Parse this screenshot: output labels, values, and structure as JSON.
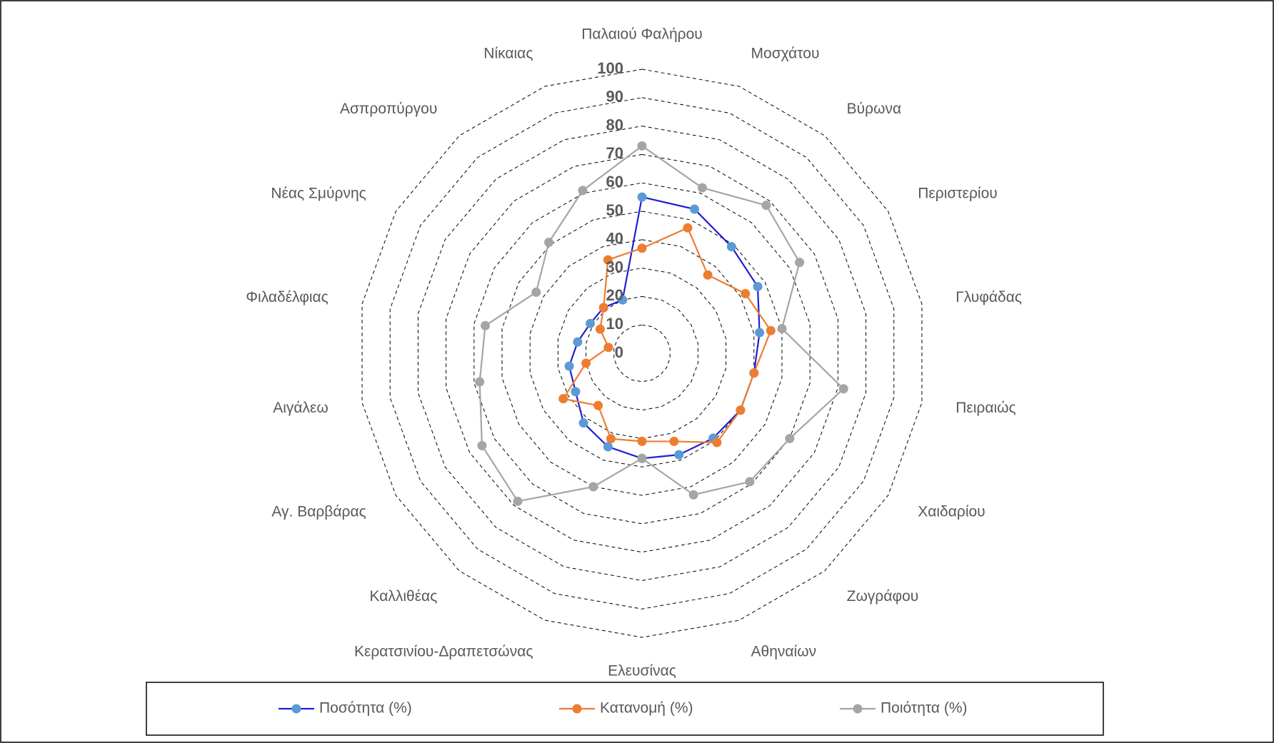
{
  "chart_data": {
    "type": "radar",
    "categories": [
      "Παλαιού Φαλήρου",
      "Μοσχάτου",
      "Βύρωνα",
      "Περιστερίου",
      "Γλυφάδας",
      "Πειραιώς",
      "Χαιδαρίου",
      "Ζωγράφου",
      "Αθηναίων",
      "Ελευσίνας",
      "Κερατσινίου-Δραπετσώνας",
      "Καλλιθέας",
      "Αγ. Βαρβάρας",
      "Αιγάλεω",
      "Φιλαδέλφιας",
      "Νέας Σμύρνης",
      "Ασπροπύργου",
      "Νίκαιας"
    ],
    "series": [
      {
        "name": "Ποσότητα (%)",
        "color": "#1f1fd6",
        "marker_color": "#5b9bd5",
        "values": [
          55,
          54,
          49,
          47,
          42,
          40,
          40,
          39,
          38,
          37,
          35,
          32,
          27,
          26,
          23,
          21,
          21,
          20
        ]
      },
      {
        "name": "Κατανομή (%)",
        "color": "#ed7d31",
        "marker_color": "#ed7d31",
        "values": [
          37,
          47,
          36,
          42,
          46,
          40,
          40,
          41,
          33,
          31,
          32,
          24,
          32,
          20,
          12,
          17,
          21,
          35
        ]
      },
      {
        "name": "Ποιότητα (%)",
        "color": "#a5a5a5",
        "marker_color": "#a5a5a5",
        "values": [
          73,
          62,
          68,
          64,
          50,
          72,
          60,
          59,
          53,
          37,
          50,
          68,
          65,
          58,
          56,
          43,
          51,
          61
        ]
      }
    ],
    "ylim": [
      0,
      100
    ],
    "yticks": [
      0,
      10,
      20,
      30,
      40,
      50,
      60,
      70,
      80,
      90,
      100
    ],
    "grid": true,
    "legend": "bottom"
  }
}
